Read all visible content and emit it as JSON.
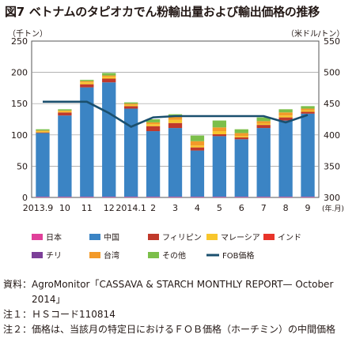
{
  "title": {
    "fig": "図7",
    "text": "ベトナムのタピオカでん粉輸出量および輸出価格の推移"
  },
  "units": {
    "left": "（千トン）",
    "right": "（米ドル/トン）",
    "x_suffix": "(年.月)"
  },
  "chart_data": {
    "type": "bar",
    "categories": [
      "2013.9",
      "10",
      "11",
      "12",
      "2014.1",
      "2",
      "3",
      "4",
      "5",
      "6",
      "7",
      "8",
      "9"
    ],
    "series": [
      {
        "name": "日本",
        "color": "#e0409a",
        "values": [
          1,
          1,
          1,
          1,
          1,
          1,
          1,
          1,
          1,
          1,
          1,
          1,
          1
        ]
      },
      {
        "name": "中国",
        "color": "#3b84c4",
        "values": [
          102,
          130,
          175,
          183,
          141,
          105,
          110,
          74,
          97,
          92,
          110,
          122,
          133
        ]
      },
      {
        "name": "フィリピン",
        "color": "#c0392b",
        "values": [
          1,
          5,
          5,
          6,
          4,
          8,
          8,
          5,
          3,
          3,
          5,
          5,
          3
        ]
      },
      {
        "name": "マレーシア",
        "color": "#f8c62c",
        "values": [
          2,
          2,
          3,
          3,
          2,
          3,
          5,
          3,
          5,
          2,
          2,
          3,
          2
        ]
      },
      {
        "name": "インド",
        "color": "#e8342a",
        "values": [
          0,
          0,
          0,
          0,
          0,
          0,
          0,
          0,
          0,
          0,
          0,
          0,
          0
        ]
      },
      {
        "name": "チリ",
        "color": "#7c3f98",
        "values": [
          0,
          0,
          0,
          0,
          0,
          0,
          0,
          0,
          0,
          0,
          0,
          0,
          0
        ]
      },
      {
        "name": "台湾",
        "color": "#f39a29",
        "values": [
          1,
          1,
          2,
          2,
          2,
          3,
          5,
          7,
          6,
          5,
          4,
          5,
          3
        ]
      },
      {
        "name": "その他",
        "color": "#7cbf4a",
        "values": [
          2,
          2,
          2,
          4,
          2,
          5,
          4,
          9,
          11,
          6,
          6,
          5,
          4
        ]
      }
    ],
    "line": {
      "name": "FOB価格",
      "color": "#1a4f6e",
      "values": [
        453,
        453,
        453,
        435,
        413,
        428,
        430,
        430,
        430,
        430,
        430,
        420,
        432
      ]
    },
    "y_left": {
      "min": 0,
      "max": 250,
      "ticks": [
        0,
        50,
        100,
        150,
        200,
        250
      ]
    },
    "y_right": {
      "min": 300,
      "max": 550,
      "ticks": [
        300,
        350,
        400,
        450,
        500,
        550
      ]
    },
    "grid": true,
    "legend_position": "bottom"
  },
  "notes": [
    {
      "label": "資料：",
      "text": "AgroMonitor「CASSAVA & STARCH MONTHLY REPORT— October 2014」"
    },
    {
      "label": "注１：",
      "text": "ＨＳコード110814"
    },
    {
      "label": "注２：",
      "text": "価格は、当該月の特定日におけるＦＯＢ価格（ホーチミン）の中間価格"
    }
  ]
}
